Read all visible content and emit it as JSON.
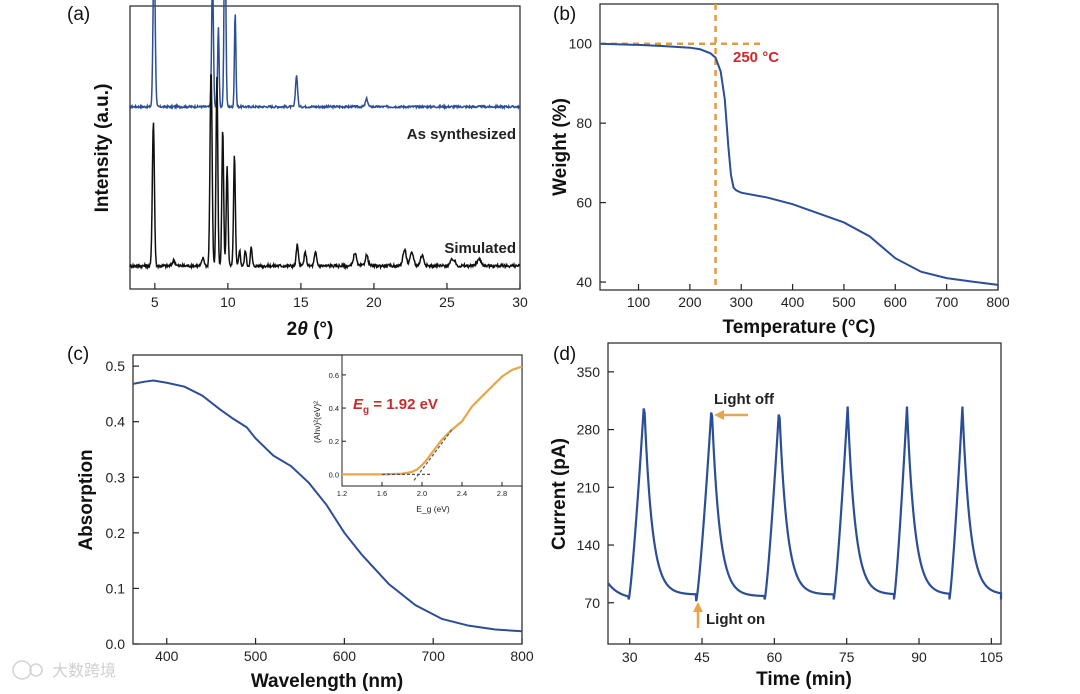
{
  "watermark": "大数跨境",
  "colors": {
    "blue": "#2c4e96",
    "black": "#111111",
    "orange": "#e8a54a",
    "red": "#cc2a2a",
    "dash": "#e39b3f"
  },
  "chart_data": [
    {
      "panel": "(a)",
      "type": "line",
      "xlabel": "2θ (°)",
      "ylabel": "Intensity (a.u.)",
      "xlim": [
        3.3,
        30
      ],
      "xticks": [
        5,
        10,
        15,
        20,
        25,
        30
      ],
      "series": [
        {
          "name": "As synthesized",
          "color": "#2c4e96",
          "offset": 0.62,
          "baseline": 0.035,
          "noise": 0.008,
          "peaks": [
            [
              4.95,
              0.62,
              0.07
            ],
            [
              8.95,
              0.5,
              0.06
            ],
            [
              9.35,
              0.3,
              0.05
            ],
            [
              9.8,
              0.74,
              0.06
            ],
            [
              10.5,
              0.36,
              0.05
            ],
            [
              14.7,
              0.12,
              0.07
            ],
            [
              19.5,
              0.03,
              0.08
            ]
          ]
        },
        {
          "name": "Simulated",
          "color": "#111111",
          "offset": 0.03,
          "baseline": 0.02,
          "noise": 0.012,
          "peaks": [
            [
              4.9,
              0.55,
              0.07
            ],
            [
              6.3,
              0.02,
              0.1
            ],
            [
              8.3,
              0.03,
              0.08
            ],
            [
              8.85,
              0.75,
              0.07
            ],
            [
              9.25,
              0.72,
              0.06
            ],
            [
              9.65,
              0.52,
              0.06
            ],
            [
              9.95,
              0.38,
              0.06
            ],
            [
              10.45,
              0.42,
              0.06
            ],
            [
              10.8,
              0.06,
              0.06
            ],
            [
              11.2,
              0.06,
              0.06
            ],
            [
              11.6,
              0.07,
              0.06
            ],
            [
              14.75,
              0.08,
              0.07
            ],
            [
              15.3,
              0.05,
              0.08
            ],
            [
              16.0,
              0.05,
              0.08
            ],
            [
              18.7,
              0.05,
              0.1
            ],
            [
              19.5,
              0.04,
              0.1
            ],
            [
              22.1,
              0.06,
              0.12
            ],
            [
              22.6,
              0.05,
              0.12
            ],
            [
              23.3,
              0.04,
              0.12
            ],
            [
              25.4,
              0.025,
              0.15
            ],
            [
              27.2,
              0.025,
              0.15
            ]
          ]
        }
      ]
    },
    {
      "panel": "(b)",
      "type": "line",
      "xlabel": "Temperature (°C)",
      "ylabel": "Weight (%)",
      "xlim": [
        25,
        800
      ],
      "ylim": [
        38,
        110
      ],
      "xticks": [
        100,
        200,
        300,
        400,
        500,
        600,
        700,
        800
      ],
      "yticks": [
        40,
        60,
        80,
        100
      ],
      "annotation": "250 °C",
      "marker": {
        "x": 250,
        "y": 100
      },
      "x": [
        25,
        100,
        150,
        200,
        220,
        240,
        250,
        260,
        268,
        275,
        280,
        285,
        290,
        300,
        350,
        400,
        450,
        500,
        550,
        600,
        650,
        700,
        750,
        800
      ],
      "y": [
        100,
        99.7,
        99.4,
        99.0,
        98.6,
        97.6,
        96.5,
        93,
        86,
        74,
        67,
        63.8,
        63.1,
        62.5,
        61.3,
        59.6,
        57.3,
        55,
        51.5,
        46,
        42.6,
        41.0,
        40.1,
        39.3
      ]
    },
    {
      "panel": "(c)",
      "type": "line",
      "xlabel": "Wavelength (nm)",
      "ylabel": "Absorption",
      "xlim": [
        362,
        800
      ],
      "ylim": [
        0,
        0.52
      ],
      "xticks": [
        400,
        500,
        600,
        700,
        800
      ],
      "yticks": [
        0.0,
        0.1,
        0.2,
        0.3,
        0.4,
        0.5
      ],
      "x": [
        362,
        375,
        385,
        400,
        420,
        440,
        460,
        475,
        490,
        500,
        520,
        540,
        560,
        580,
        600,
        620,
        650,
        680,
        710,
        740,
        770,
        800
      ],
      "y": [
        0.468,
        0.472,
        0.474,
        0.47,
        0.463,
        0.447,
        0.422,
        0.405,
        0.39,
        0.37,
        0.339,
        0.32,
        0.29,
        0.25,
        0.2,
        0.16,
        0.108,
        0.07,
        0.045,
        0.033,
        0.026,
        0.023
      ],
      "inset": {
        "xlabel": "E_g (eV)",
        "ylabel": "(Ahν)²(eV)²",
        "xlim": [
          1.2,
          3.0
        ],
        "ylim": [
          -0.07,
          0.72
        ],
        "xticks": [
          1.2,
          1.6,
          2.0,
          2.4,
          2.8
        ],
        "xtick_labels": [
          "1.2",
          "1.6",
          "2.0",
          "2.4",
          "2.8"
        ],
        "yticks": [
          0.0,
          0.2,
          0.4,
          0.6
        ],
        "ytick_labels": [
          "0.0",
          "0.2",
          "0.4",
          "0.6"
        ],
        "annotation_prefix": "E",
        "annotation_sub": "g",
        "annotation_value": " = 1.92 eV",
        "x": [
          1.2,
          1.6,
          1.8,
          1.9,
          1.95,
          2.0,
          2.05,
          2.1,
          2.2,
          2.3,
          2.4,
          2.5,
          2.6,
          2.7,
          2.8,
          2.9,
          3.0
        ],
        "y": [
          0.0,
          0.0,
          0.004,
          0.015,
          0.03,
          0.055,
          0.09,
          0.13,
          0.21,
          0.27,
          0.32,
          0.41,
          0.47,
          0.53,
          0.59,
          0.63,
          0.65
        ],
        "fit": {
          "x": [
            1.92,
            2.3
          ],
          "y": [
            0.0,
            0.27
          ]
        },
        "baseline": {
          "x": [
            1.6,
            2.1
          ],
          "y": [
            0.0,
            0.0
          ]
        }
      }
    },
    {
      "panel": "(d)",
      "type": "line",
      "xlabel": "Time (min)",
      "ylabel": "Current (pA)",
      "xlim": [
        25.5,
        107
      ],
      "ylim": [
        20,
        385
      ],
      "xticks": [
        30,
        45,
        60,
        75,
        90,
        105
      ],
      "yticks": [
        70,
        140,
        210,
        280,
        350
      ],
      "annotations": {
        "off": "Light off",
        "on": "Light on"
      },
      "cycles": [
        {
          "on": 29.8,
          "peak": 33.0,
          "low": 74,
          "high": 315
        },
        {
          "on": 43.8,
          "peak": 47.0,
          "low": 72,
          "high": 310
        },
        {
          "on": 58.0,
          "peak": 61.0,
          "low": 74,
          "high": 308
        },
        {
          "on": 72.3,
          "peak": 75.2,
          "low": 74,
          "high": 308
        },
        {
          "on": 84.8,
          "peak": 87.5,
          "low": 74,
          "high": 308
        },
        {
          "on": 96.3,
          "peak": 99.0,
          "low": 74,
          "high": 308
        }
      ],
      "end": {
        "t": 107,
        "v": 74
      }
    }
  ]
}
